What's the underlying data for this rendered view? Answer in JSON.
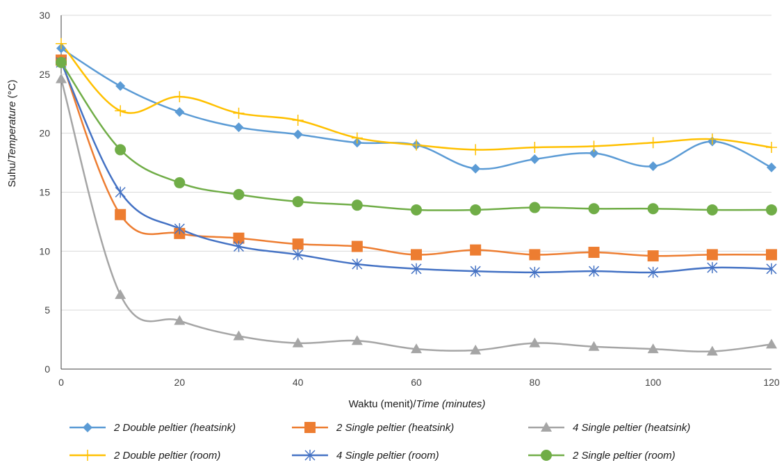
{
  "chart_data": {
    "type": "line",
    "xlabel_plain": "Waktu (menit)/",
    "xlabel_italic": "Time (minutes)",
    "ylabel_plain": "Suhu/",
    "ylabel_italic": "Temperature",
    "ylabel_unit": " (°C)",
    "xlim": [
      0,
      120
    ],
    "ylim": [
      0,
      30
    ],
    "x_ticks": [
      0,
      20,
      40,
      60,
      80,
      100,
      120
    ],
    "y_ticks": [
      0,
      5,
      10,
      15,
      20,
      25,
      30
    ],
    "grid": "horizontal",
    "legend_position": "bottom",
    "x": [
      0,
      10,
      20,
      30,
      40,
      50,
      60,
      70,
      80,
      90,
      100,
      110,
      120
    ],
    "series": [
      {
        "name": "2 Double peltier (heatsink)",
        "color": "#5B9BD5",
        "marker": "diamond",
        "values": [
          27.2,
          24.0,
          21.8,
          20.5,
          19.9,
          19.2,
          19.0,
          17.0,
          17.8,
          18.3,
          17.2,
          19.3,
          17.1
        ]
      },
      {
        "name": "2 Single peltier (heatsink)",
        "color": "#ED7D31",
        "marker": "square",
        "values": [
          26.2,
          13.1,
          11.5,
          11.1,
          10.6,
          10.4,
          9.7,
          10.1,
          9.7,
          9.9,
          9.6,
          9.7,
          9.7
        ]
      },
      {
        "name": "4 Single peltier (heatsink)",
        "color": "#A5A5A5",
        "marker": "triangle",
        "values": [
          24.6,
          6.3,
          4.1,
          2.8,
          2.2,
          2.4,
          1.7,
          1.6,
          2.2,
          1.9,
          1.7,
          1.5,
          2.1
        ]
      },
      {
        "name": "2 Double peltier (room)",
        "color": "#FFC000",
        "marker": "plus",
        "values": [
          27.6,
          21.9,
          23.1,
          21.7,
          21.1,
          19.6,
          19.0,
          18.6,
          18.8,
          18.9,
          19.2,
          19.5,
          18.8
        ]
      },
      {
        "name": "4 Single peltier (room)",
        "color": "#4472C4",
        "marker": "asterisk",
        "values": [
          26.0,
          15.0,
          11.9,
          10.4,
          9.7,
          8.9,
          8.5,
          8.3,
          8.2,
          8.3,
          8.2,
          8.6,
          8.5
        ]
      },
      {
        "name": "2 Single peltier (room)",
        "color": "#70AD47",
        "marker": "circle",
        "values": [
          26.0,
          18.6,
          15.8,
          14.8,
          14.2,
          13.9,
          13.5,
          13.5,
          13.7,
          13.6,
          13.6,
          13.5,
          13.5
        ]
      }
    ]
  }
}
